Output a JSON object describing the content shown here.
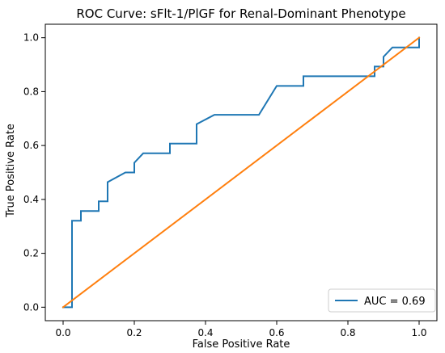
{
  "chart_data": {
    "type": "line",
    "title": "ROC Curve: sFlt-1/PlGF for Renal-Dominant Phenotype",
    "xlabel": "False Positive Rate",
    "ylabel": "True Positive Rate",
    "xlim": [
      -0.05,
      1.05
    ],
    "ylim": [
      -0.05,
      1.05
    ],
    "xticks": [
      0.0,
      0.2,
      0.4,
      0.6,
      0.8,
      1.0
    ],
    "yticks": [
      0.0,
      0.2,
      0.4,
      0.6,
      0.8,
      1.0
    ],
    "tick_labels_x": [
      "0.0",
      "0.2",
      "0.4",
      "0.6",
      "0.8",
      "1.0"
    ],
    "tick_labels_y": [
      "0.0",
      "0.2",
      "0.4",
      "0.6",
      "0.8",
      "1.0"
    ],
    "grid": false,
    "legend_position": "lower-right",
    "series": [
      {
        "name": "AUC = 0.69",
        "color": "#1f77b4",
        "x": [
          0.0,
          0.025,
          0.025,
          0.05,
          0.05,
          0.1,
          0.1,
          0.125,
          0.125,
          0.175,
          0.2,
          0.2,
          0.225,
          0.3,
          0.3,
          0.375,
          0.375,
          0.425,
          0.55,
          0.6,
          0.675,
          0.675,
          0.875,
          0.875,
          0.9,
          0.9,
          0.925,
          1.0,
          1.0
        ],
        "y": [
          0.0,
          0.0,
          0.321,
          0.321,
          0.357,
          0.357,
          0.393,
          0.393,
          0.464,
          0.5,
          0.5,
          0.536,
          0.571,
          0.571,
          0.607,
          0.607,
          0.679,
          0.714,
          0.714,
          0.821,
          0.821,
          0.857,
          0.857,
          0.893,
          0.893,
          0.929,
          0.964,
          0.964,
          1.0
        ]
      },
      {
        "color": "#ff7f0e",
        "x": [
          0.0,
          1.0
        ],
        "y": [
          0.0,
          1.0
        ]
      }
    ]
  }
}
